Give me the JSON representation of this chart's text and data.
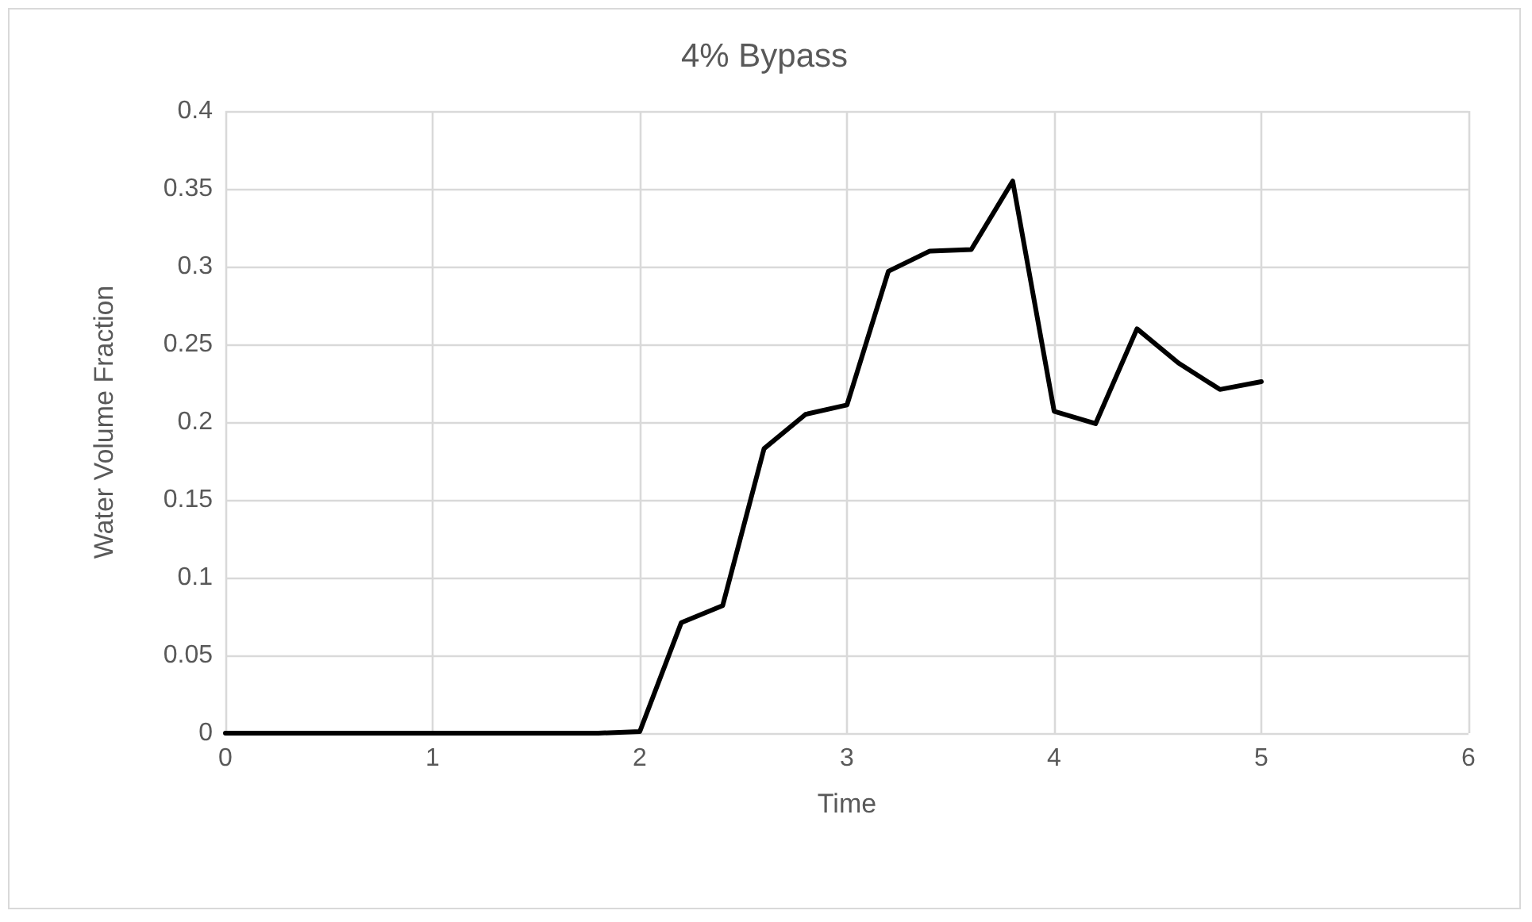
{
  "chart_data": {
    "type": "line",
    "title": "4% Bypass",
    "xlabel": "Time",
    "ylabel": "Water Volume Fraction",
    "x": [
      0,
      0.2,
      0.4,
      0.6,
      0.8,
      1,
      1.2,
      1.4,
      1.6,
      1.8,
      2,
      2.2,
      2.4,
      2.6,
      2.8,
      3,
      3.2,
      3.4,
      3.6,
      3.8,
      4,
      4.2,
      4.4,
      4.6,
      4.8,
      5
    ],
    "series": [
      {
        "color": "#000000",
        "values": [
          0,
          0,
          0,
          0,
          0,
          0,
          0,
          0,
          0,
          0,
          0.001,
          0.071,
          0.082,
          0.183,
          0.205,
          0.211,
          0.297,
          0.31,
          0.311,
          0.355,
          0.207,
          0.199,
          0.26,
          0.238,
          0.221,
          0.226
        ]
      }
    ],
    "xlim": [
      0,
      6
    ],
    "xticks": [
      0,
      1,
      2,
      3,
      4,
      5,
      6
    ],
    "ylim": [
      0,
      0.4
    ],
    "yticks": [
      0,
      0.05,
      0.1,
      0.15,
      0.2,
      0.25,
      0.3,
      0.35,
      0.4
    ],
    "grid": true,
    "marker": "none",
    "line_style": "solid"
  }
}
